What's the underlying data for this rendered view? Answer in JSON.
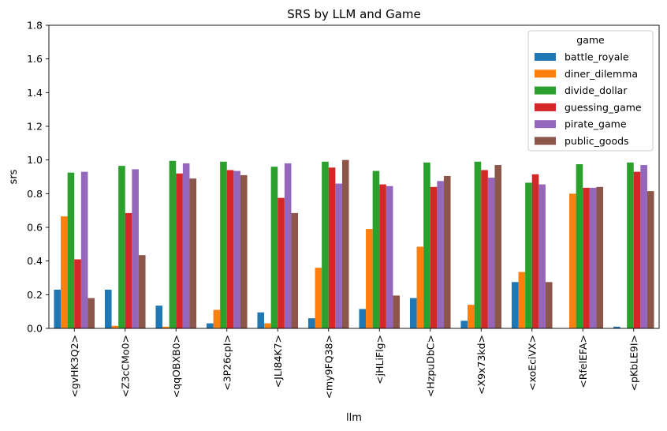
{
  "chart_data": {
    "type": "bar",
    "title": "SRS by LLM and Game",
    "xlabel": "llm",
    "ylabel": "srs",
    "ylim": [
      0,
      1.8
    ],
    "yticks": [
      "0.0",
      "0.2",
      "0.4",
      "0.6",
      "0.8",
      "1.0",
      "1.2",
      "1.4",
      "1.6",
      "1.8"
    ],
    "yticks_values": [
      0,
      0.2,
      0.4,
      0.6,
      0.8,
      1.0,
      1.2,
      1.4,
      1.6,
      1.8
    ],
    "grid": false,
    "legend": {
      "title": "game",
      "placement": "top-right"
    },
    "categories": [
      "<gvHK3Q2>",
      "<Z3cCMo0>",
      "<qqOBXB0>",
      "<3P26cpI>",
      "<JLI84K7>",
      "<my9FQ38>",
      "<jHLiFlg>",
      "<HzpuDbC>",
      "<X9x73kd>",
      "<xoEciVX>",
      "<RfelEFA>",
      "<pKbLE9I>"
    ],
    "series": [
      {
        "name": "battle_royale",
        "color": "#1f77b4",
        "values": [
          0.23,
          0.23,
          0.135,
          0.03,
          0.095,
          0.06,
          0.115,
          0.18,
          0.045,
          0.275,
          0.0,
          0.01
        ]
      },
      {
        "name": "diner_dilemma",
        "color": "#ff7f0e",
        "values": [
          0.665,
          0.015,
          0.01,
          0.11,
          0.03,
          0.36,
          0.59,
          0.485,
          0.14,
          0.335,
          0.8,
          0.0
        ]
      },
      {
        "name": "divide_dollar",
        "color": "#2ca02c",
        "values": [
          0.925,
          0.965,
          0.995,
          0.99,
          0.96,
          0.99,
          0.935,
          0.985,
          0.99,
          0.865,
          0.975,
          0.985
        ]
      },
      {
        "name": "guessing_game",
        "color": "#d62728",
        "values": [
          0.41,
          0.685,
          0.92,
          0.94,
          0.775,
          0.955,
          0.855,
          0.84,
          0.94,
          0.915,
          0.835,
          0.93
        ]
      },
      {
        "name": "pirate_game",
        "color": "#9467bd",
        "values": [
          0.93,
          0.945,
          0.98,
          0.935,
          0.98,
          0.86,
          0.845,
          0.875,
          0.895,
          0.855,
          0.835,
          0.97
        ]
      },
      {
        "name": "public_goods",
        "color": "#8c564b",
        "values": [
          0.18,
          0.435,
          0.89,
          0.91,
          0.685,
          1.0,
          0.195,
          0.905,
          0.97,
          0.275,
          0.84,
          0.815
        ]
      }
    ]
  }
}
